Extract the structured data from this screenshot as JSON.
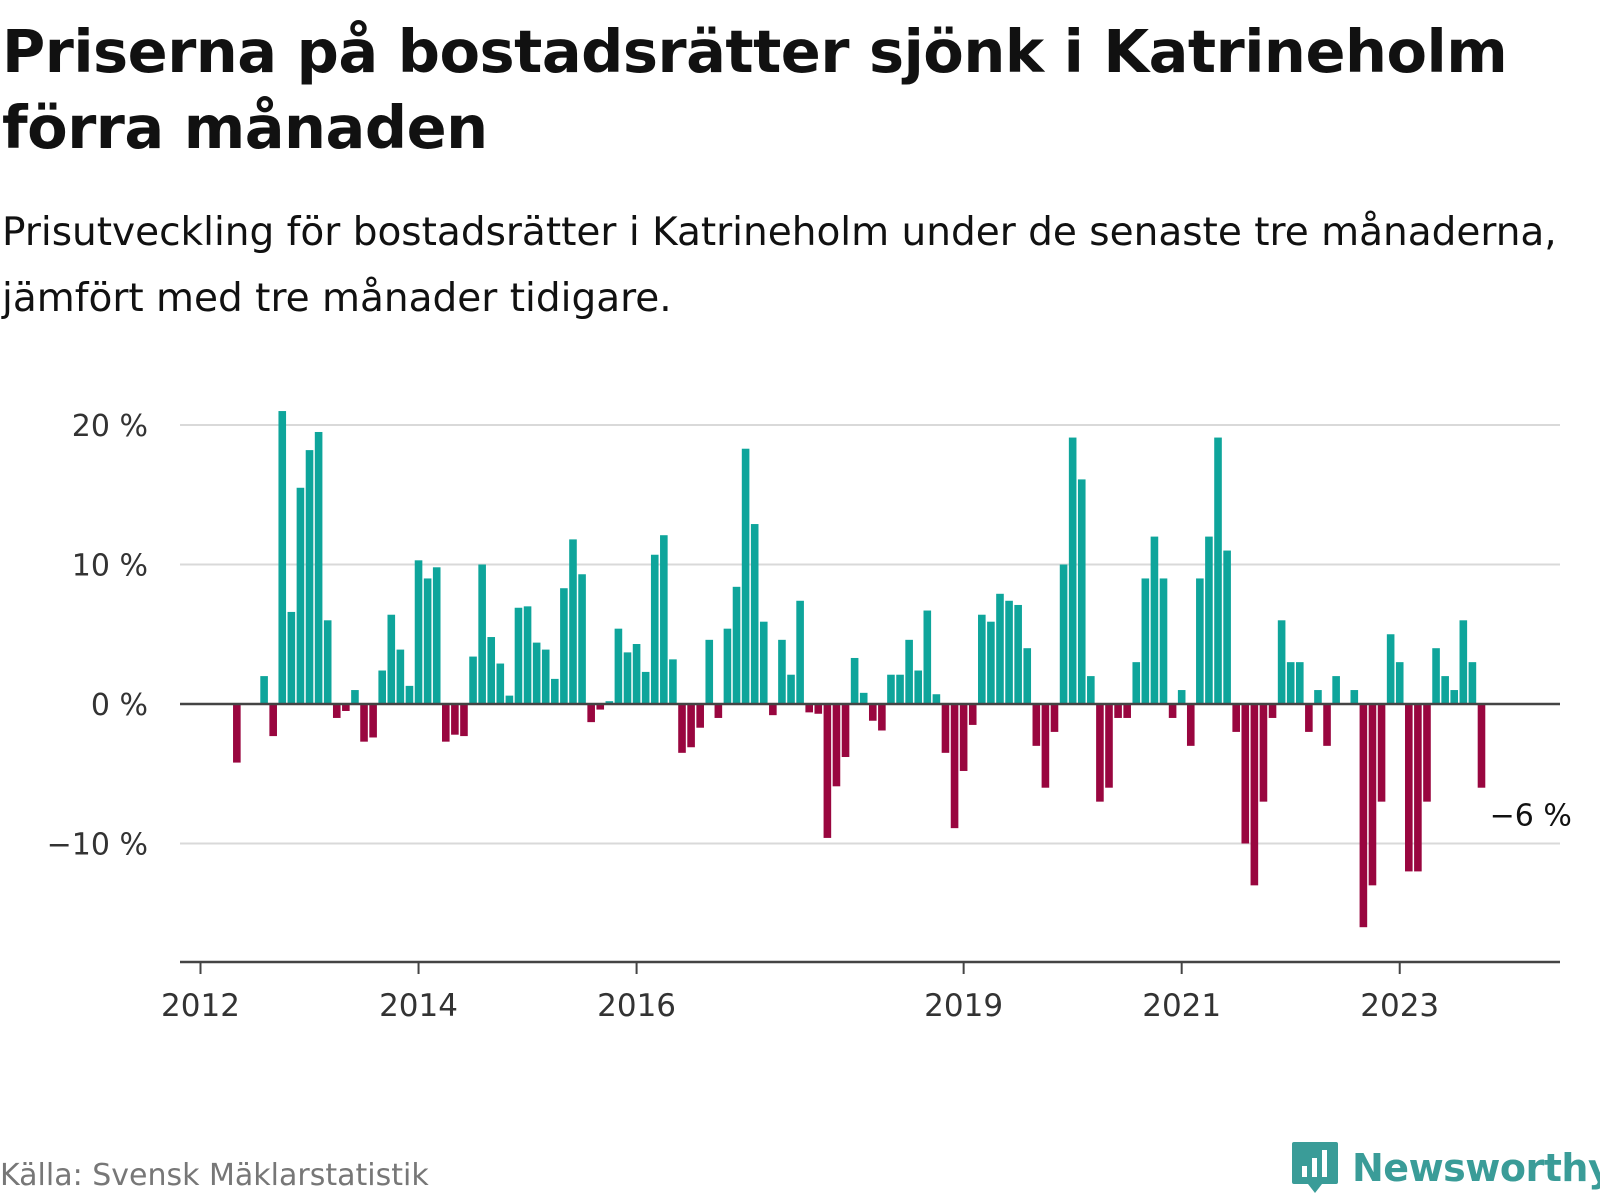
{
  "header": {
    "title": "Priserna på bostadsrätter sjönk i Katrineholm förra månaden",
    "subtitle": "Prisutveckling för bostadsrätter i Katrineholm under de senaste tre månaderna, jämfört med tre månader tidigare."
  },
  "footer": {
    "source": "Källa: Svensk Mäklarstatistik",
    "brand": "Newsworthy"
  },
  "colors": {
    "positive": "#0ea59b",
    "negative": "#99063f",
    "grid": "#d9d9d9",
    "axis": "#444444",
    "brand": "#3a9c98"
  },
  "chart_data": {
    "type": "bar",
    "x_unit": "month",
    "y_unit": "%",
    "ylim": [
      -18,
      21
    ],
    "y_ticks": [
      {
        "value": 20,
        "label": "20 %"
      },
      {
        "value": 10,
        "label": "10 %"
      },
      {
        "value": 0,
        "label": "0 %"
      },
      {
        "value": -10,
        "label": "−10 %"
      }
    ],
    "x_ticks": [
      {
        "value": "2012-01",
        "label": "2012"
      },
      {
        "value": "2014-01",
        "label": "2014"
      },
      {
        "value": "2016-01",
        "label": "2016"
      },
      {
        "value": "2019-01",
        "label": "2019"
      },
      {
        "value": "2021-01",
        "label": "2021"
      },
      {
        "value": "2023-01",
        "label": "2023"
      }
    ],
    "x_range": [
      "2012-01",
      "2024-08"
    ],
    "grid": true,
    "legend": "none",
    "annotation": {
      "month": "2023-12",
      "value": -6,
      "label": "−6 %"
    },
    "series": [
      {
        "values": [
          [
            "2012-05",
            -4.2
          ],
          [
            "2012-08",
            2
          ],
          [
            "2012-09",
            -2.3
          ],
          [
            "2012-10",
            21
          ],
          [
            "2012-11",
            6.6
          ],
          [
            "2012-12",
            15.5
          ],
          [
            "2013-01",
            18.2
          ],
          [
            "2013-02",
            19.5
          ],
          [
            "2013-03",
            6
          ],
          [
            "2013-04",
            -1
          ],
          [
            "2013-05",
            -0.5
          ],
          [
            "2013-06",
            1
          ],
          [
            "2013-07",
            -2.7
          ],
          [
            "2013-08",
            -2.4
          ],
          [
            "2013-09",
            2.4
          ],
          [
            "2013-10",
            6.4
          ],
          [
            "2013-11",
            3.9
          ],
          [
            "2013-12",
            1.3
          ],
          [
            "2014-01",
            10.3
          ],
          [
            "2014-02",
            9
          ],
          [
            "2014-03",
            9.8
          ],
          [
            "2014-04",
            -2.7
          ],
          [
            "2014-05",
            -2.2
          ],
          [
            "2014-06",
            -2.3
          ],
          [
            "2014-07",
            3.4
          ],
          [
            "2014-08",
            10
          ],
          [
            "2014-09",
            4.8
          ],
          [
            "2014-10",
            2.9
          ],
          [
            "2014-11",
            0.6
          ],
          [
            "2014-12",
            6.9
          ],
          [
            "2015-01",
            7
          ],
          [
            "2015-02",
            4.4
          ],
          [
            "2015-03",
            3.9
          ],
          [
            "2015-04",
            1.8
          ],
          [
            "2015-05",
            8.3
          ],
          [
            "2015-06",
            11.8
          ],
          [
            "2015-07",
            9.3
          ],
          [
            "2015-08",
            -1.3
          ],
          [
            "2015-09",
            -0.4
          ],
          [
            "2015-10",
            0.2
          ],
          [
            "2015-11",
            5.4
          ],
          [
            "2015-12",
            3.7
          ],
          [
            "2016-01",
            4.3
          ],
          [
            "2016-02",
            2.3
          ],
          [
            "2016-03",
            10.7
          ],
          [
            "2016-04",
            12.1
          ],
          [
            "2016-05",
            3.2
          ],
          [
            "2016-06",
            -3.5
          ],
          [
            "2016-07",
            -3.1
          ],
          [
            "2016-08",
            -1.7
          ],
          [
            "2016-09",
            4.6
          ],
          [
            "2016-10",
            -1
          ],
          [
            "2016-11",
            5.4
          ],
          [
            "2016-12",
            8.4
          ],
          [
            "2017-01",
            18.3
          ],
          [
            "2017-02",
            12.9
          ],
          [
            "2017-03",
            5.9
          ],
          [
            "2017-04",
            -0.8
          ],
          [
            "2017-05",
            4.6
          ],
          [
            "2017-06",
            2.1
          ],
          [
            "2017-07",
            7.4
          ],
          [
            "2017-08",
            -0.6
          ],
          [
            "2017-09",
            -0.7
          ],
          [
            "2017-10",
            -9.6
          ],
          [
            "2017-11",
            -5.9
          ],
          [
            "2017-12",
            -3.8
          ],
          [
            "2018-01",
            3.3
          ],
          [
            "2018-02",
            0.8
          ],
          [
            "2018-03",
            -1.2
          ],
          [
            "2018-04",
            -1.9
          ],
          [
            "2018-05",
            2.1
          ],
          [
            "2018-06",
            2.1
          ],
          [
            "2018-07",
            4.6
          ],
          [
            "2018-08",
            2.4
          ],
          [
            "2018-09",
            6.7
          ],
          [
            "2018-10",
            0.7
          ],
          [
            "2018-11",
            -3.5
          ],
          [
            "2018-12",
            -8.9
          ],
          [
            "2019-01",
            -4.8
          ],
          [
            "2019-02",
            -1.5
          ],
          [
            "2019-03",
            6.4
          ],
          [
            "2019-04",
            5.9
          ],
          [
            "2019-05",
            7.9
          ],
          [
            "2019-06",
            7.4
          ],
          [
            "2019-07",
            7.1
          ],
          [
            "2019-08",
            4
          ],
          [
            "2019-09",
            -3
          ],
          [
            "2019-10",
            -6
          ],
          [
            "2019-11",
            -2
          ],
          [
            "2019-12",
            10
          ],
          [
            "2020-01",
            19.1
          ],
          [
            "2020-02",
            16.1
          ],
          [
            "2020-03",
            2
          ],
          [
            "2020-04",
            -7
          ],
          [
            "2020-05",
            -6
          ],
          [
            "2020-06",
            -1
          ],
          [
            "2020-07",
            -1
          ],
          [
            "2020-08",
            3
          ],
          [
            "2020-09",
            9
          ],
          [
            "2020-10",
            12
          ],
          [
            "2020-11",
            9
          ],
          [
            "2020-12",
            -1
          ],
          [
            "2021-01",
            1
          ],
          [
            "2021-02",
            -3
          ],
          [
            "2021-03",
            9
          ],
          [
            "2021-04",
            12
          ],
          [
            "2021-05",
            19.1
          ],
          [
            "2021-06",
            11
          ],
          [
            "2021-07",
            -2
          ],
          [
            "2021-08",
            -10
          ],
          [
            "2021-09",
            -13
          ],
          [
            "2021-10",
            -7
          ],
          [
            "2021-11",
            -1
          ],
          [
            "2021-12",
            6
          ],
          [
            "2022-01",
            3
          ],
          [
            "2022-02",
            3
          ],
          [
            "2022-03",
            -2
          ],
          [
            "2022-04",
            1
          ],
          [
            "2022-05",
            -3
          ],
          [
            "2022-06",
            2
          ],
          [
            "2022-08",
            1
          ],
          [
            "2022-09",
            -16
          ],
          [
            "2022-10",
            -13
          ],
          [
            "2022-11",
            -7
          ],
          [
            "2022-12",
            5
          ],
          [
            "2023-01",
            3
          ],
          [
            "2023-02",
            -12
          ],
          [
            "2023-03",
            -12
          ],
          [
            "2023-04",
            -7
          ],
          [
            "2023-05",
            4
          ],
          [
            "2023-06",
            2
          ],
          [
            "2023-07",
            1
          ],
          [
            "2023-08",
            6
          ],
          [
            "2023-09",
            3
          ],
          [
            "2023-10",
            -6
          ]
        ]
      }
    ]
  }
}
